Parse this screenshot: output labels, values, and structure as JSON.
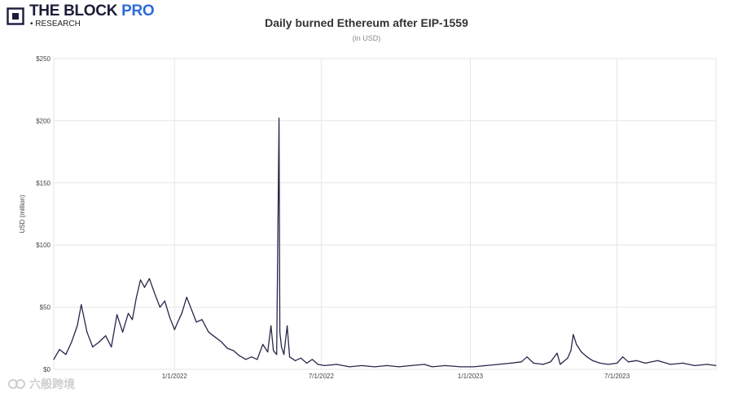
{
  "brand": {
    "name": "THE BLOCK",
    "name_accent": "PRO",
    "subtitle": "• RESEARCH"
  },
  "watermark": {
    "text": "六般跨境"
  },
  "chart_data": {
    "type": "line",
    "title": "Daily burned Ethereum after EIP-1559",
    "subtitle": "(in USD)",
    "xlabel": "",
    "ylabel": "USD (million)",
    "ylim": [
      0,
      250
    ],
    "yticks": [
      0,
      50,
      100,
      150,
      200,
      250
    ],
    "ytick_labels": [
      "$0",
      "$50",
      "$100",
      "$150",
      "$200",
      "$250"
    ],
    "xlim": [
      "2021-08-05",
      "2023-10-31"
    ],
    "xticks": [
      "2022-01-01",
      "2022-07-01",
      "2023-01-01",
      "2023-07-01"
    ],
    "xtick_labels": [
      "1/1/2022",
      "7/1/2022",
      "1/1/2023",
      "7/1/2023"
    ],
    "grid": true,
    "line_color": "#26264a",
    "series": [
      {
        "name": "",
        "points": [
          [
            "2021-08-05",
            8
          ],
          [
            "2021-08-12",
            16
          ],
          [
            "2021-08-20",
            12
          ],
          [
            "2021-08-27",
            22
          ],
          [
            "2021-09-03",
            35
          ],
          [
            "2021-09-08",
            52
          ],
          [
            "2021-09-15",
            30
          ],
          [
            "2021-09-22",
            18
          ],
          [
            "2021-09-30",
            22
          ],
          [
            "2021-10-08",
            27
          ],
          [
            "2021-10-15",
            18
          ],
          [
            "2021-10-22",
            44
          ],
          [
            "2021-10-29",
            30
          ],
          [
            "2021-11-05",
            45
          ],
          [
            "2021-11-10",
            40
          ],
          [
            "2021-11-15",
            58
          ],
          [
            "2021-11-20",
            72
          ],
          [
            "2021-11-25",
            66
          ],
          [
            "2021-12-01",
            73
          ],
          [
            "2021-12-07",
            62
          ],
          [
            "2021-12-14",
            50
          ],
          [
            "2021-12-20",
            55
          ],
          [
            "2021-12-26",
            42
          ],
          [
            "2022-01-01",
            32
          ],
          [
            "2022-01-05",
            38
          ],
          [
            "2022-01-10",
            45
          ],
          [
            "2022-01-16",
            58
          ],
          [
            "2022-01-22",
            48
          ],
          [
            "2022-01-28",
            38
          ],
          [
            "2022-02-04",
            40
          ],
          [
            "2022-02-12",
            30
          ],
          [
            "2022-02-20",
            26
          ],
          [
            "2022-02-28",
            22
          ],
          [
            "2022-03-07",
            17
          ],
          [
            "2022-03-15",
            15
          ],
          [
            "2022-03-22",
            11
          ],
          [
            "2022-03-30",
            8
          ],
          [
            "2022-04-06",
            10
          ],
          [
            "2022-04-13",
            8
          ],
          [
            "2022-04-20",
            20
          ],
          [
            "2022-04-26",
            14
          ],
          [
            "2022-04-30",
            35
          ],
          [
            "2022-05-03",
            15
          ],
          [
            "2022-05-07",
            12
          ],
          [
            "2022-05-10",
            202
          ],
          [
            "2022-05-11",
            30
          ],
          [
            "2022-05-13",
            18
          ],
          [
            "2022-05-16",
            12
          ],
          [
            "2022-05-20",
            35
          ],
          [
            "2022-05-23",
            10
          ],
          [
            "2022-05-30",
            7
          ],
          [
            "2022-06-06",
            9
          ],
          [
            "2022-06-13",
            5
          ],
          [
            "2022-06-20",
            8
          ],
          [
            "2022-06-27",
            4
          ],
          [
            "2022-07-05",
            3
          ],
          [
            "2022-07-20",
            4
          ],
          [
            "2022-08-05",
            2
          ],
          [
            "2022-08-20",
            3
          ],
          [
            "2022-09-05",
            2
          ],
          [
            "2022-09-20",
            3
          ],
          [
            "2022-10-05",
            2
          ],
          [
            "2022-10-20",
            3
          ],
          [
            "2022-11-05",
            4
          ],
          [
            "2022-11-15",
            2
          ],
          [
            "2022-12-01",
            3
          ],
          [
            "2022-12-20",
            2
          ],
          [
            "2023-01-05",
            2
          ],
          [
            "2023-01-20",
            3
          ],
          [
            "2023-02-05",
            4
          ],
          [
            "2023-02-20",
            5
          ],
          [
            "2023-03-05",
            6
          ],
          [
            "2023-03-12",
            10
          ],
          [
            "2023-03-20",
            5
          ],
          [
            "2023-04-01",
            4
          ],
          [
            "2023-04-10",
            6
          ],
          [
            "2023-04-18",
            13
          ],
          [
            "2023-04-22",
            4
          ],
          [
            "2023-05-01",
            9
          ],
          [
            "2023-05-05",
            15
          ],
          [
            "2023-05-08",
            28
          ],
          [
            "2023-05-12",
            20
          ],
          [
            "2023-05-18",
            14
          ],
          [
            "2023-05-25",
            10
          ],
          [
            "2023-06-01",
            7
          ],
          [
            "2023-06-10",
            5
          ],
          [
            "2023-06-20",
            4
          ],
          [
            "2023-07-01",
            5
          ],
          [
            "2023-07-08",
            10
          ],
          [
            "2023-07-15",
            6
          ],
          [
            "2023-07-25",
            7
          ],
          [
            "2023-08-05",
            5
          ],
          [
            "2023-08-20",
            7
          ],
          [
            "2023-09-05",
            4
          ],
          [
            "2023-09-20",
            5
          ],
          [
            "2023-10-05",
            3
          ],
          [
            "2023-10-20",
            4
          ],
          [
            "2023-10-31",
            3
          ]
        ]
      }
    ]
  }
}
